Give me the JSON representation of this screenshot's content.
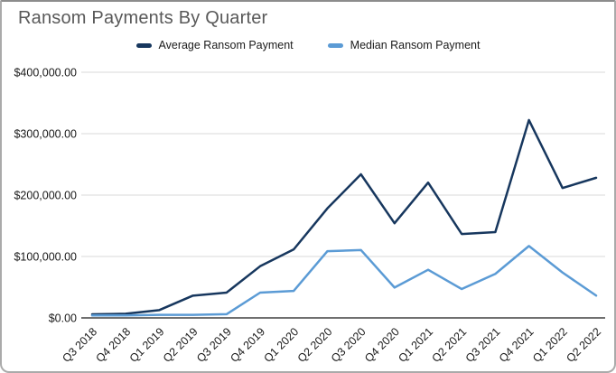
{
  "title": "Ransom Payments By Quarter",
  "chart_data": {
    "type": "line",
    "title": "Ransom Payments By Quarter",
    "categories": [
      "Q3 2018",
      "Q4 2018",
      "Q1 2019",
      "Q2 2019",
      "Q3 2019",
      "Q4 2019",
      "Q1 2020",
      "Q2 2020",
      "Q3 2020",
      "Q4 2020",
      "Q1 2021",
      "Q2 2021",
      "Q3 2021",
      "Q4 2021",
      "Q1 2022",
      "Q2 2022"
    ],
    "series": [
      {
        "name": "Average Ransom Payment",
        "color": "#17375E",
        "values": [
          5973,
          6733,
          12762,
          36295,
          41198,
          84116,
          111605,
          178254,
          233817,
          154108,
          220298,
          136576,
          139739,
          322168,
          211529,
          228125
        ]
      },
      {
        "name": "Median Ransom Payment",
        "color": "#5B9BD5",
        "values": [
          4000,
          4000,
          5000,
          5000,
          6000,
          41179,
          44021,
          108597,
          110532,
          49450,
          78398,
          47008,
          71674,
          117116,
          73906,
          36360
        ]
      }
    ],
    "xlabel": "",
    "ylabel": "",
    "ylim": [
      0,
      400000
    ],
    "y_ticks": [
      {
        "value": 0,
        "label": "$0.00"
      },
      {
        "value": 100000,
        "label": "$100,000.00"
      },
      {
        "value": 200000,
        "label": "$200,000.00"
      },
      {
        "value": 300000,
        "label": "$300,000.00"
      },
      {
        "value": 400000,
        "label": "$400,000.00"
      }
    ],
    "grid": true,
    "legend_position": "top",
    "x_tick_rotation": -45
  },
  "colors": {
    "title_text": "#595959",
    "axis_text": "#1a1a1a",
    "gridline": "#d9d9d9",
    "baseline": "#404040",
    "card_border": "#aaaaaa"
  }
}
